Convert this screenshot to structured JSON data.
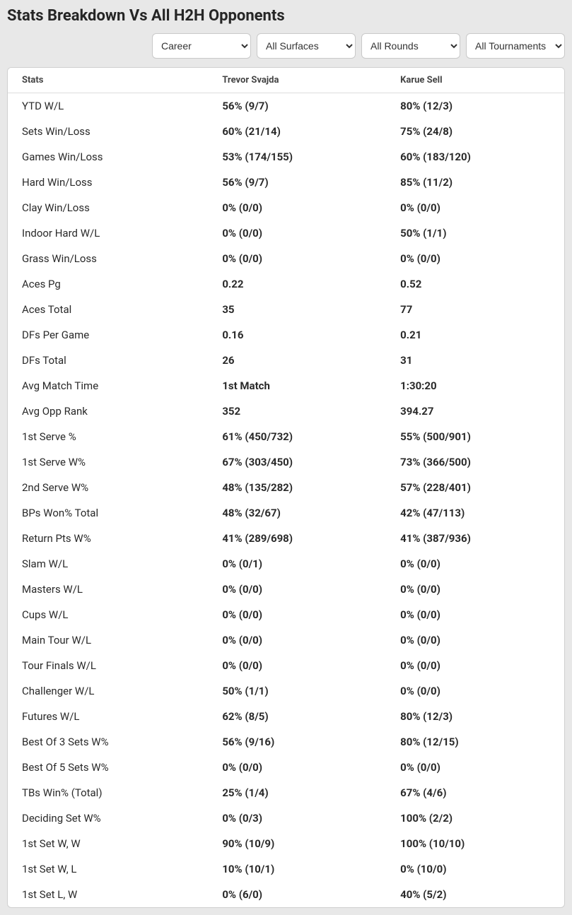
{
  "title": "Stats Breakdown Vs All H2H Opponents",
  "filters": {
    "period": "Career",
    "surface": "All Surfaces",
    "round": "All Rounds",
    "tournament": "All Tournaments"
  },
  "table": {
    "headers": {
      "stats": "Stats",
      "p1": "Trevor Svajda",
      "p2": "Karue Sell"
    },
    "rows": [
      {
        "label": "YTD W/L",
        "p1": "56% (9/7)",
        "p2": "80% (12/3)"
      },
      {
        "label": "Sets Win/Loss",
        "p1": "60% (21/14)",
        "p2": "75% (24/8)"
      },
      {
        "label": "Games Win/Loss",
        "p1": "53% (174/155)",
        "p2": "60% (183/120)"
      },
      {
        "label": "Hard Win/Loss",
        "p1": "56% (9/7)",
        "p2": "85% (11/2)"
      },
      {
        "label": "Clay Win/Loss",
        "p1": "0% (0/0)",
        "p2": "0% (0/0)"
      },
      {
        "label": "Indoor Hard W/L",
        "p1": "0% (0/0)",
        "p2": "50% (1/1)"
      },
      {
        "label": "Grass Win/Loss",
        "p1": "0% (0/0)",
        "p2": "0% (0/0)"
      },
      {
        "label": "Aces Pg",
        "p1": "0.22",
        "p2": "0.52"
      },
      {
        "label": "Aces Total",
        "p1": "35",
        "p2": "77"
      },
      {
        "label": "DFs Per Game",
        "p1": "0.16",
        "p2": "0.21"
      },
      {
        "label": "DFs Total",
        "p1": "26",
        "p2": "31"
      },
      {
        "label": "Avg Match Time",
        "p1": "1st Match",
        "p2": "1:30:20"
      },
      {
        "label": "Avg Opp Rank",
        "p1": "352",
        "p2": "394.27"
      },
      {
        "label": "1st Serve %",
        "p1": "61% (450/732)",
        "p2": "55% (500/901)"
      },
      {
        "label": "1st Serve W%",
        "p1": "67% (303/450)",
        "p2": "73% (366/500)"
      },
      {
        "label": "2nd Serve W%",
        "p1": "48% (135/282)",
        "p2": "57% (228/401)"
      },
      {
        "label": "BPs Won% Total",
        "p1": "48% (32/67)",
        "p2": "42% (47/113)"
      },
      {
        "label": "Return Pts W%",
        "p1": "41% (289/698)",
        "p2": "41% (387/936)"
      },
      {
        "label": "Slam W/L",
        "p1": "0% (0/1)",
        "p2": "0% (0/0)"
      },
      {
        "label": "Masters W/L",
        "p1": "0% (0/0)",
        "p2": "0% (0/0)"
      },
      {
        "label": "Cups W/L",
        "p1": "0% (0/0)",
        "p2": "0% (0/0)"
      },
      {
        "label": "Main Tour W/L",
        "p1": "0% (0/0)",
        "p2": "0% (0/0)"
      },
      {
        "label": "Tour Finals W/L",
        "p1": "0% (0/0)",
        "p2": "0% (0/0)"
      },
      {
        "label": "Challenger W/L",
        "p1": "50% (1/1)",
        "p2": "0% (0/0)"
      },
      {
        "label": "Futures W/L",
        "p1": "62% (8/5)",
        "p2": "80% (12/3)"
      },
      {
        "label": "Best Of 3 Sets W%",
        "p1": "56% (9/16)",
        "p2": "80% (12/15)"
      },
      {
        "label": "Best Of 5 Sets W%",
        "p1": "0% (0/0)",
        "p2": "0% (0/0)"
      },
      {
        "label": "TBs Win% (Total)",
        "p1": "25% (1/4)",
        "p2": "67% (4/6)"
      },
      {
        "label": "Deciding Set W%",
        "p1": "0% (0/3)",
        "p2": "100% (2/2)"
      },
      {
        "label": "1st Set W, W",
        "p1": "90% (10/9)",
        "p2": "100% (10/10)"
      },
      {
        "label": "1st Set W, L",
        "p1": "10% (10/1)",
        "p2": "0% (10/0)"
      },
      {
        "label": "1st Set L, W",
        "p1": "0% (6/0)",
        "p2": "40% (5/2)"
      }
    ]
  }
}
